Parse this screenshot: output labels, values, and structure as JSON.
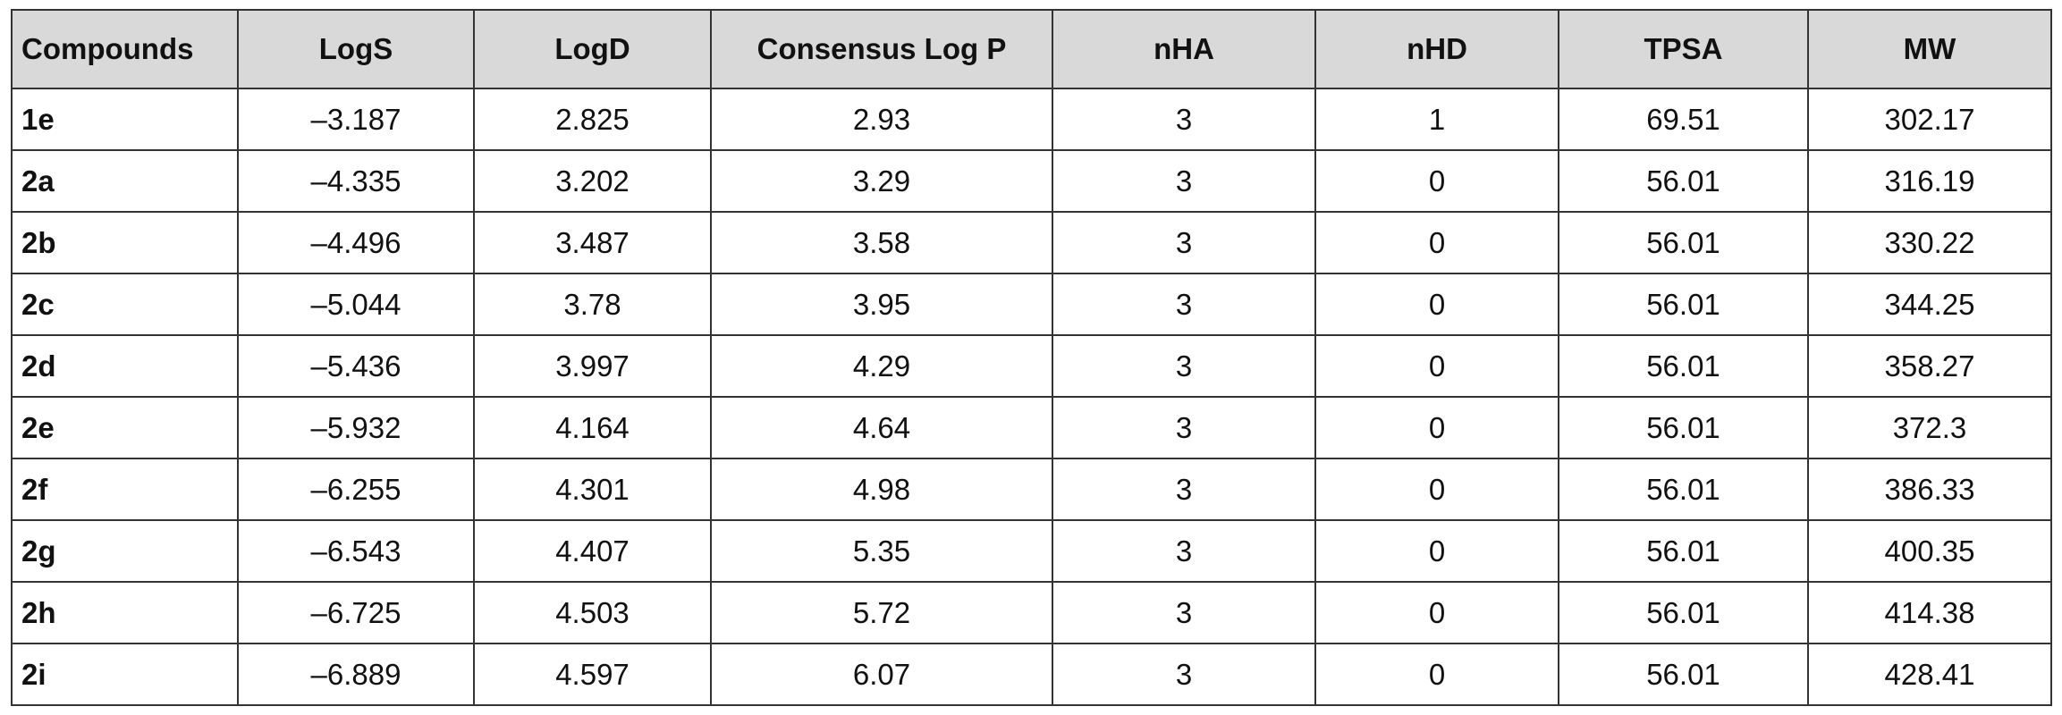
{
  "table": {
    "headers": [
      "Compounds",
      "LogS",
      "LogD",
      "Consensus Log P",
      "nHA",
      "nHD",
      "TPSA",
      "MW"
    ],
    "rows": [
      [
        "1e",
        "–3.187",
        "2.825",
        "2.93",
        "3",
        "1",
        "69.51",
        "302.17"
      ],
      [
        "2a",
        "–4.335",
        "3.202",
        "3.29",
        "3",
        "0",
        "56.01",
        "316.19"
      ],
      [
        "2b",
        "–4.496",
        "3.487",
        "3.58",
        "3",
        "0",
        "56.01",
        "330.22"
      ],
      [
        "2c",
        "–5.044",
        "3.78",
        "3.95",
        "3",
        "0",
        "56.01",
        "344.25"
      ],
      [
        "2d",
        "–5.436",
        "3.997",
        "4.29",
        "3",
        "0",
        "56.01",
        "358.27"
      ],
      [
        "2e",
        "–5.932",
        "4.164",
        "4.64",
        "3",
        "0",
        "56.01",
        "372.3"
      ],
      [
        "2f",
        "–6.255",
        "4.301",
        "4.98",
        "3",
        "0",
        "56.01",
        "386.33"
      ],
      [
        "2g",
        "–6.543",
        "4.407",
        "5.35",
        "3",
        "0",
        "56.01",
        "400.35"
      ],
      [
        "2h",
        "–6.725",
        "4.503",
        "5.72",
        "3",
        "0",
        "56.01",
        "414.38"
      ],
      [
        "2i",
        "–6.889",
        "4.597",
        "6.07",
        "3",
        "0",
        "56.01",
        "428.41"
      ]
    ]
  }
}
